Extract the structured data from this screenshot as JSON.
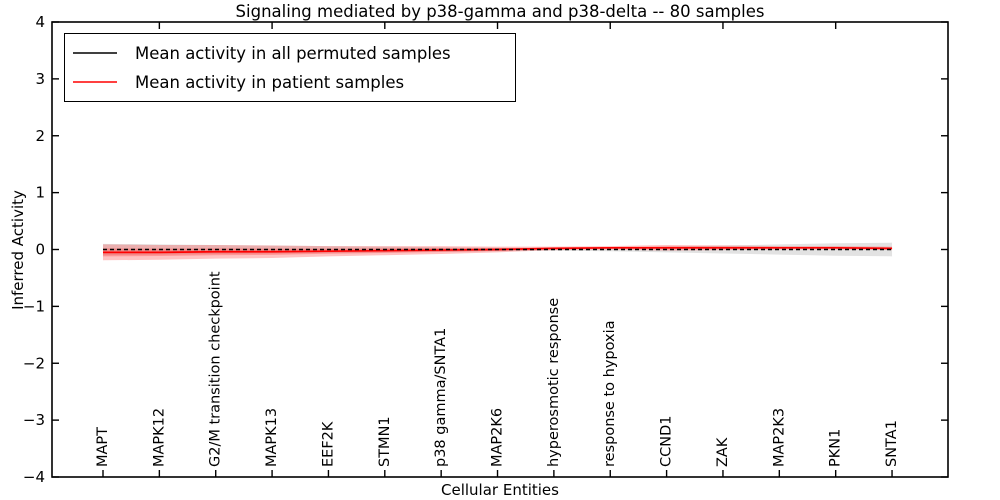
{
  "figure": {
    "title": "Signaling mediated by p38-gamma and p38-delta -- 80 samples",
    "xlabel": "Cellular Entities",
    "ylabel": "Inferred Activity"
  },
  "legend": {
    "items": [
      {
        "label": "Mean activity in all permuted samples",
        "color": "#000000"
      },
      {
        "label": "Mean activity in patient samples",
        "color": "#ff0000"
      }
    ]
  },
  "chart_data": {
    "type": "line",
    "title": "Signaling mediated by p38-gamma and p38-delta -- 80 samples",
    "xlabel": "Cellular Entities",
    "ylabel": "Inferred Activity",
    "ylim": [
      -4,
      4
    ],
    "ytick_values": [
      4,
      3,
      2,
      1,
      0,
      -1,
      -2,
      -3,
      -4
    ],
    "ytick_labels": [
      "4",
      "3",
      "2",
      "1",
      "0",
      "−1",
      "−2",
      "−3",
      "−4"
    ],
    "grid": false,
    "legend_position": "upper left",
    "categories": [
      "MAPT",
      "MAPK12",
      "G2/M transition checkpoint",
      "MAPK13",
      "EEF2K",
      "STMN1",
      "p38 gamma/SNTA1",
      "MAP2K6",
      "hyperosmotic response",
      "response to hypoxia",
      "CCND1",
      "ZAK",
      "MAP2K3",
      "PKN1",
      "SNTA1"
    ],
    "series": [
      {
        "name": "Mean activity in all permuted samples",
        "color": "#000000",
        "style": "dashed",
        "values": [
          0.0,
          0.0,
          0.0,
          0.0,
          0.0,
          0.0,
          0.0,
          0.0,
          0.0,
          0.0,
          0.0,
          0.0,
          0.0,
          0.0,
          0.0
        ],
        "band": [
          0.1,
          0.09,
          0.08,
          0.07,
          0.06,
          0.05,
          0.04,
          0.03,
          0.02,
          0.03,
          0.05,
          0.07,
          0.09,
          0.11,
          0.12
        ],
        "band_color": "rgba(125,125,125,0.22)"
      },
      {
        "name": "Mean activity in patient samples",
        "color": "#ff0000",
        "style": "solid",
        "values": [
          -0.05,
          -0.05,
          -0.04,
          -0.04,
          -0.03,
          -0.02,
          -0.01,
          0.0,
          0.02,
          0.03,
          0.03,
          0.03,
          0.03,
          0.03,
          0.02
        ],
        "band": [
          0.14,
          0.13,
          0.12,
          0.11,
          0.09,
          0.08,
          0.07,
          0.05,
          0.03,
          0.03,
          0.05,
          0.04,
          0.03,
          0.03,
          0.03
        ],
        "band_color": "rgba(255,40,40,0.28)"
      }
    ]
  }
}
